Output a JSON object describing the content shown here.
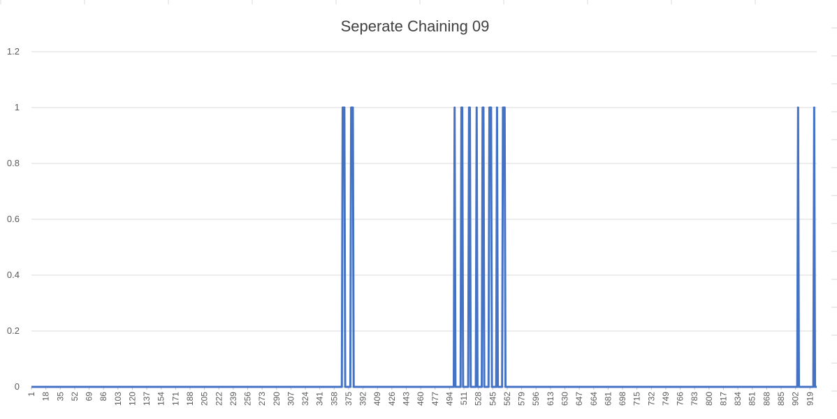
{
  "chart_data": {
    "type": "line",
    "title": "Seperate Chaining 09",
    "xlabel": "",
    "ylabel": "",
    "x_range": [
      1,
      927
    ],
    "ylim": [
      0,
      1.2
    ],
    "y_ticks": [
      "0",
      "0.2",
      "0.4",
      "0.6",
      "0.8",
      "1",
      "1.2"
    ],
    "x_tick_labels": [
      "1",
      "18",
      "35",
      "52",
      "69",
      "86",
      "103",
      "120",
      "137",
      "154",
      "171",
      "188",
      "205",
      "222",
      "239",
      "256",
      "273",
      "290",
      "307",
      "324",
      "341",
      "358",
      "375",
      "392",
      "409",
      "426",
      "443",
      "460",
      "477",
      "494",
      "511",
      "528",
      "545",
      "562",
      "579",
      "596",
      "613",
      "630",
      "647",
      "664",
      "681",
      "698",
      "715",
      "732",
      "749",
      "766",
      "783",
      "800",
      "817",
      "834",
      "851",
      "868",
      "885",
      "902",
      "919"
    ],
    "grid": "horizontal",
    "legend": "none",
    "series": [
      {
        "color": "#4472C4",
        "default_value": 0,
        "points_equal_one": [
          368,
          369,
          370,
          378,
          379,
          380,
          500,
          508,
          509,
          517,
          518,
          526,
          533,
          534,
          541,
          542,
          543,
          550,
          557,
          558,
          559,
          905,
          924
        ]
      }
    ]
  }
}
